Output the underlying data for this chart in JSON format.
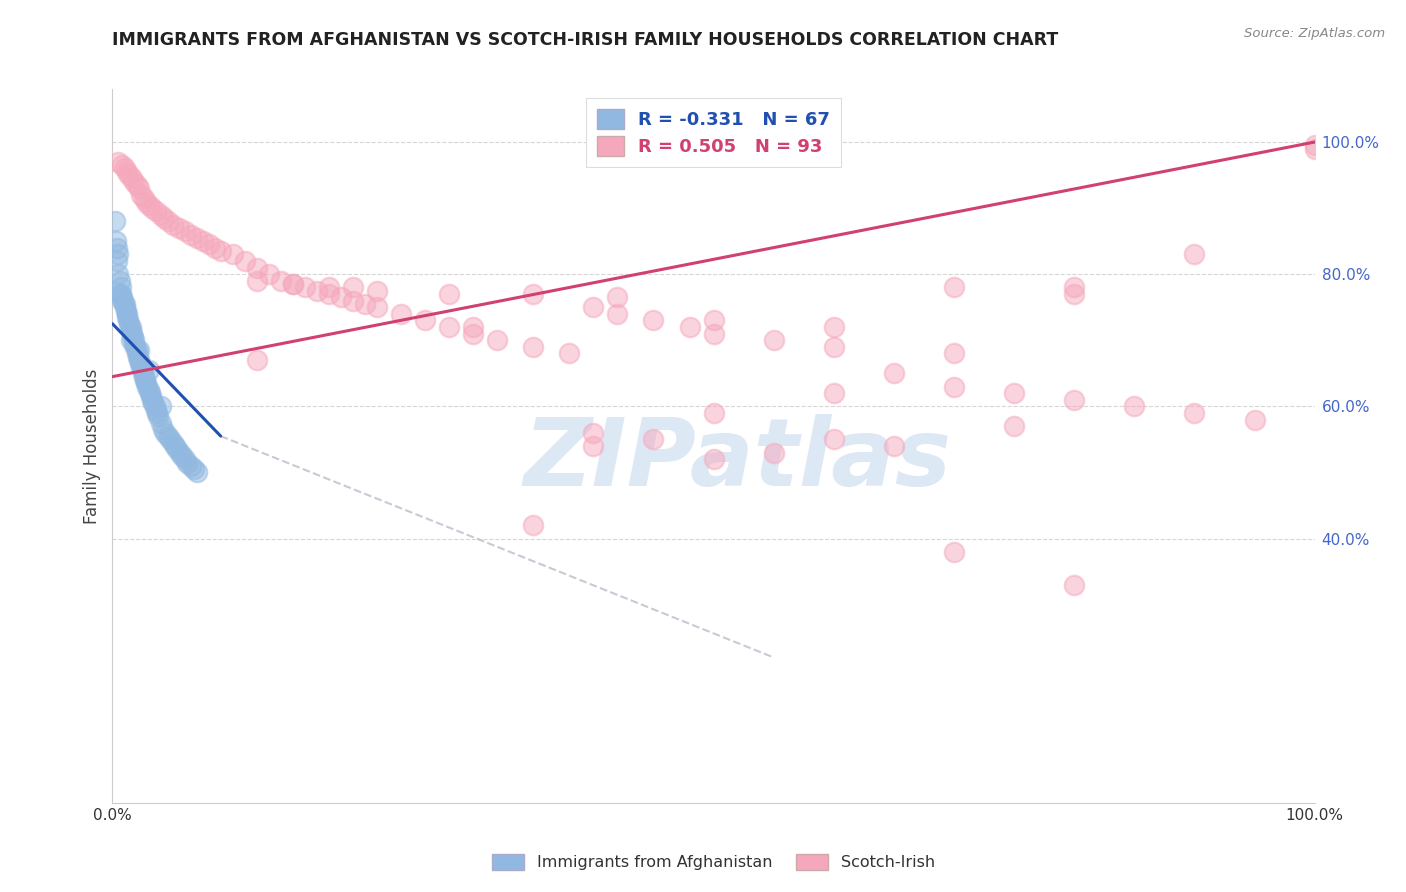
{
  "title": "IMMIGRANTS FROM AFGHANISTAN VS SCOTCH-IRISH FAMILY HOUSEHOLDS CORRELATION CHART",
  "source": "Source: ZipAtlas.com",
  "ylabel_left": "Family Households",
  "legend_blue_label": "Immigrants from Afghanistan",
  "legend_pink_label": "Scotch-Irish",
  "blue_r": -0.331,
  "blue_n": 67,
  "pink_r": 0.505,
  "pink_n": 93,
  "blue_color": "#90b8e0",
  "pink_color": "#f5a8bc",
  "blue_line_color": "#2050b0",
  "pink_line_color": "#d04070",
  "gray_dash_color": "#b8b8c8",
  "right_axis_color": "#4466cc",
  "watermark_text": "ZIPatlas",
  "watermark_color": "#dde8f5",
  "background_color": "#ffffff",
  "grid_color": "#cccccc",
  "xlim": [
    0.0,
    1.0
  ],
  "ylim": [
    0.0,
    1.08
  ],
  "blue_line_x": [
    0.0,
    0.09
  ],
  "blue_line_y": [
    0.725,
    0.555
  ],
  "pink_line_x": [
    0.0,
    1.0
  ],
  "pink_line_y": [
    0.645,
    1.0
  ],
  "gray_line_x": [
    0.09,
    0.55
  ],
  "gray_line_y": [
    0.555,
    0.22
  ],
  "blue_scatter_x": [
    0.002,
    0.003,
    0.004,
    0.005,
    0.005,
    0.006,
    0.007,
    0.007,
    0.008,
    0.009,
    0.01,
    0.01,
    0.011,
    0.012,
    0.012,
    0.013,
    0.014,
    0.015,
    0.015,
    0.016,
    0.017,
    0.018,
    0.018,
    0.019,
    0.02,
    0.02,
    0.021,
    0.022,
    0.023,
    0.024,
    0.025,
    0.025,
    0.026,
    0.027,
    0.028,
    0.029,
    0.03,
    0.031,
    0.032,
    0.033,
    0.034,
    0.035,
    0.036,
    0.037,
    0.038,
    0.04,
    0.042,
    0.044,
    0.046,
    0.048,
    0.05,
    0.052,
    0.054,
    0.056,
    0.058,
    0.06,
    0.062,
    0.065,
    0.068,
    0.07,
    0.004,
    0.006,
    0.008,
    0.015,
    0.022,
    0.03,
    0.04
  ],
  "blue_scatter_y": [
    0.88,
    0.85,
    0.84,
    0.83,
    0.8,
    0.79,
    0.78,
    0.77,
    0.765,
    0.76,
    0.755,
    0.75,
    0.745,
    0.74,
    0.735,
    0.73,
    0.725,
    0.72,
    0.715,
    0.71,
    0.705,
    0.7,
    0.695,
    0.69,
    0.685,
    0.68,
    0.675,
    0.67,
    0.665,
    0.66,
    0.655,
    0.65,
    0.645,
    0.64,
    0.635,
    0.63,
    0.625,
    0.62,
    0.615,
    0.61,
    0.605,
    0.6,
    0.595,
    0.59,
    0.585,
    0.575,
    0.565,
    0.56,
    0.555,
    0.55,
    0.545,
    0.54,
    0.535,
    0.53,
    0.525,
    0.52,
    0.515,
    0.51,
    0.505,
    0.5,
    0.82,
    0.77,
    0.76,
    0.7,
    0.685,
    0.655,
    0.6
  ],
  "pink_scatter_x": [
    0.005,
    0.008,
    0.01,
    0.012,
    0.014,
    0.016,
    0.018,
    0.02,
    0.022,
    0.024,
    0.026,
    0.028,
    0.03,
    0.033,
    0.036,
    0.04,
    0.043,
    0.046,
    0.05,
    0.055,
    0.06,
    0.065,
    0.07,
    0.075,
    0.08,
    0.085,
    0.09,
    0.1,
    0.11,
    0.12,
    0.13,
    0.14,
    0.15,
    0.16,
    0.17,
    0.18,
    0.19,
    0.2,
    0.21,
    0.22,
    0.24,
    0.26,
    0.28,
    0.3,
    0.32,
    0.35,
    0.38,
    0.4,
    0.42,
    0.45,
    0.48,
    0.5,
    0.55,
    0.6,
    0.65,
    0.7,
    0.75,
    0.8,
    0.85,
    0.9,
    0.95,
    1.0,
    0.12,
    0.15,
    0.18,
    0.22,
    0.28,
    0.35,
    0.42,
    0.5,
    0.6,
    0.7,
    0.8,
    0.9,
    1.0,
    0.35,
    0.4,
    0.45,
    0.5,
    0.55,
    0.6,
    0.65,
    0.7,
    0.75,
    0.8,
    0.12,
    0.2,
    0.3,
    0.4,
    0.5,
    0.6,
    0.7,
    0.8
  ],
  "pink_scatter_y": [
    0.97,
    0.965,
    0.96,
    0.955,
    0.95,
    0.945,
    0.94,
    0.935,
    0.93,
    0.92,
    0.915,
    0.91,
    0.905,
    0.9,
    0.895,
    0.89,
    0.885,
    0.88,
    0.875,
    0.87,
    0.865,
    0.86,
    0.855,
    0.85,
    0.845,
    0.84,
    0.835,
    0.83,
    0.82,
    0.81,
    0.8,
    0.79,
    0.785,
    0.78,
    0.775,
    0.77,
    0.765,
    0.76,
    0.755,
    0.75,
    0.74,
    0.73,
    0.72,
    0.71,
    0.7,
    0.69,
    0.68,
    0.75,
    0.74,
    0.73,
    0.72,
    0.71,
    0.7,
    0.69,
    0.65,
    0.63,
    0.62,
    0.61,
    0.6,
    0.59,
    0.58,
    0.99,
    0.79,
    0.785,
    0.78,
    0.775,
    0.77,
    0.77,
    0.765,
    0.73,
    0.72,
    0.68,
    0.78,
    0.83,
    0.995,
    0.42,
    0.54,
    0.55,
    0.59,
    0.53,
    0.62,
    0.54,
    0.78,
    0.57,
    0.77,
    0.67,
    0.78,
    0.72,
    0.56,
    0.52,
    0.55,
    0.38,
    0.33
  ]
}
